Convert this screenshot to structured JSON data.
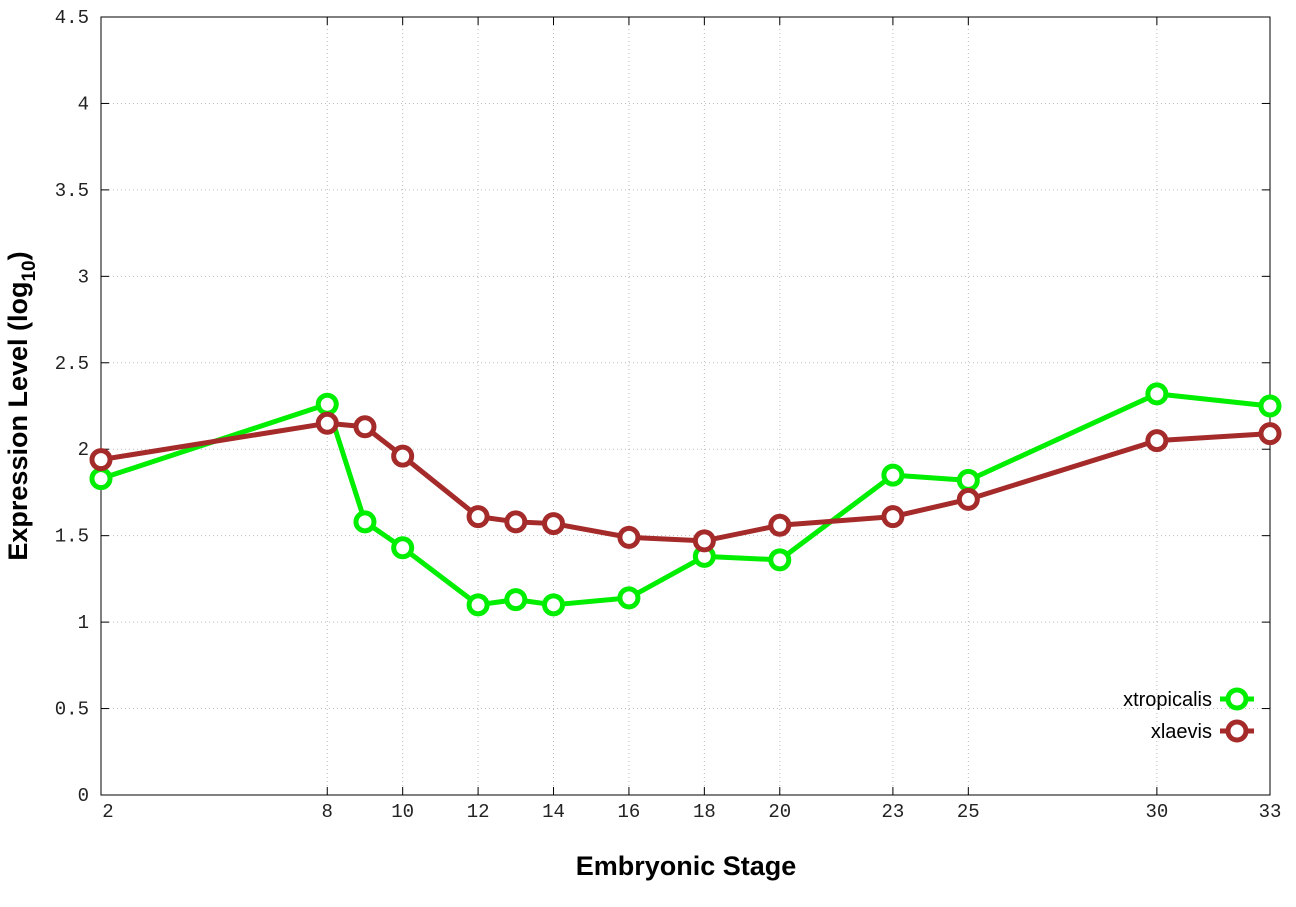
{
  "chart_data": {
    "type": "line",
    "title": "",
    "xlabel": "Embryonic Stage",
    "ylabel": "Expression Level (log",
    "ylabel_sub": "10",
    "ylabel_close": ")",
    "xlim": [
      2,
      33
    ],
    "ylim": [
      0,
      4.5
    ],
    "grid": true,
    "legend_position": "bottom-right",
    "x_ticks": [
      2,
      8,
      10,
      12,
      14,
      16,
      18,
      20,
      23,
      25,
      30,
      33
    ],
    "y_ticks": [
      "0",
      "0.5",
      "1",
      "1.5",
      "2",
      "2.5",
      "3",
      "3.5",
      "4",
      "4.5"
    ],
    "x": [
      2,
      8,
      9,
      10,
      12,
      13,
      14,
      16,
      18,
      20,
      23,
      25,
      30,
      33
    ],
    "series": [
      {
        "name": "xtropicalis",
        "color": "#00ee00",
        "values": [
          1.83,
          2.26,
          1.58,
          1.43,
          1.1,
          1.13,
          1.1,
          1.14,
          1.38,
          1.36,
          1.85,
          1.82,
          2.32,
          2.25
        ]
      },
      {
        "name": "xlaevis",
        "color": "#a52a2a",
        "values": [
          1.94,
          2.15,
          2.13,
          1.96,
          1.61,
          1.58,
          1.57,
          1.49,
          1.47,
          1.56,
          1.61,
          1.71,
          2.05,
          2.09
        ]
      }
    ]
  }
}
